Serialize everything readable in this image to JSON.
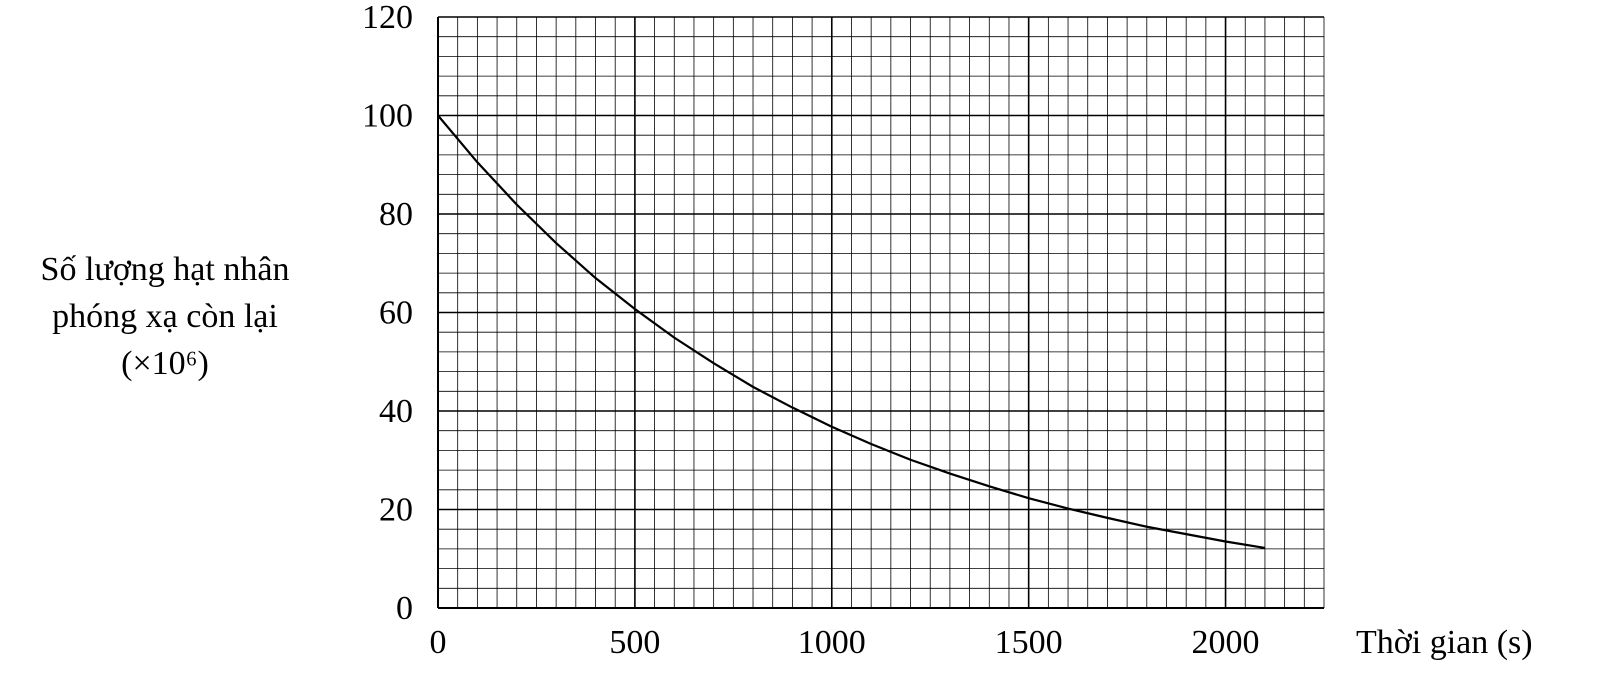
{
  "chart_data": {
    "type": "line",
    "ylabel_lines": [
      "Số lượng hạt nhân",
      "phóng xạ còn lại",
      "(×10⁶)"
    ],
    "xlabel": "Thời gian (s)",
    "xlim": [
      0,
      2250
    ],
    "ylim": [
      0,
      120
    ],
    "x_ticks": [
      0,
      500,
      1000,
      1500,
      2000
    ],
    "y_ticks": [
      0,
      20,
      40,
      60,
      80,
      100,
      120
    ],
    "x_minor_step": 50,
    "y_minor_step": 4,
    "grid": true,
    "series": [
      {
        "x": [
          0,
          100,
          200,
          300,
          400,
          500,
          600,
          700,
          800,
          900,
          1000,
          1100,
          1200,
          1300,
          1400,
          1500,
          1600,
          1700,
          1800,
          1900,
          2000,
          2100
        ],
        "y": [
          100,
          90.5,
          81.9,
          74.1,
          67.0,
          60.7,
          54.9,
          49.7,
          44.9,
          40.7,
          36.8,
          33.3,
          30.1,
          27.3,
          24.7,
          22.3,
          20.2,
          18.3,
          16.5,
          15.0,
          13.5,
          12.2
        ]
      }
    ]
  }
}
